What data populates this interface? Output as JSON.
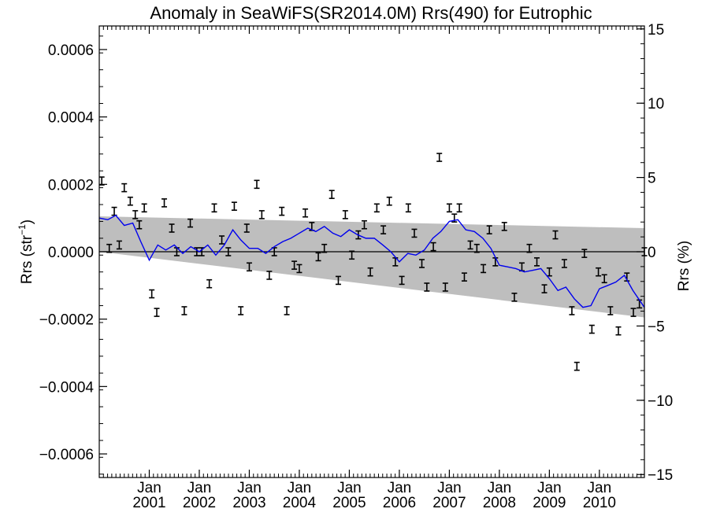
{
  "chart_data": {
    "type": "line",
    "title": "Anomaly in SeaWiFS(SR2014.0M) Rrs(490) for Eutrophic",
    "ylabel_left": {
      "main": "Rrs (str",
      "sup": "−1",
      "close": ")"
    },
    "ylabel_right": "Rrs (%)",
    "ylim": [
      -0.00067,
      0.00067
    ],
    "xlim": [
      2000.0,
      2010.9
    ],
    "y2lim": [
      -15.2,
      15.2
    ],
    "y_ticks": [
      "0.0006",
      "0.0004",
      "0.0002",
      "0.0000",
      "−0.0002",
      "−0.0004",
      "−0.0006"
    ],
    "y2_ticks": [
      "15",
      "10",
      "5",
      "0",
      "−5",
      "−10",
      "−15"
    ],
    "x_ticks": [
      {
        "month": "Jan",
        "year": "2001"
      },
      {
        "month": "Jan",
        "year": "2002"
      },
      {
        "month": "Jan",
        "year": "2003"
      },
      {
        "month": "Jan",
        "year": "2004"
      },
      {
        "month": "Jan",
        "year": "2005"
      },
      {
        "month": "Jan",
        "year": "2006"
      },
      {
        "month": "Jan",
        "year": "2007"
      },
      {
        "month": "Jan",
        "year": "2008"
      },
      {
        "month": "Jan",
        "year": "2009"
      },
      {
        "month": "Jan",
        "year": "2010"
      }
    ],
    "band": {
      "start": [
        2000.0,
        0.000105,
        -0.0
      ],
      "end": [
        2010.9,
        7e-05,
        -0.000195
      ]
    },
    "series": [
      {
        "color": "#0000ee",
        "x": [
          2000.0,
          2000.17,
          2000.33,
          2000.5,
          2000.67,
          2000.83,
          2001.0,
          2001.17,
          2001.33,
          2001.5,
          2001.67,
          2001.83,
          2002.0,
          2002.17,
          2002.33,
          2002.5,
          2002.67,
          2002.83,
          2003.0,
          2003.17,
          2003.33,
          2003.5,
          2003.67,
          2003.83,
          2004.0,
          2004.17,
          2004.33,
          2004.5,
          2004.67,
          2004.83,
          2005.0,
          2005.17,
          2005.33,
          2005.5,
          2005.67,
          2005.83,
          2006.0,
          2006.17,
          2006.33,
          2006.5,
          2006.67,
          2006.83,
          2007.0,
          2007.17,
          2007.33,
          2007.5,
          2007.67,
          2007.83,
          2008.0,
          2008.17,
          2008.33,
          2008.5,
          2008.67,
          2008.83,
          2009.0,
          2009.17,
          2009.33,
          2009.5,
          2009.67,
          2009.83,
          2010.0,
          2010.17,
          2010.33,
          2010.5,
          2010.67,
          2010.9
        ],
        "y": [
          0.0001,
          9.5e-05,
          0.000108,
          7.8e-05,
          8.5e-05,
          3e-05,
          -2.5e-05,
          2e-05,
          5e-06,
          2e-05,
          -5e-06,
          1.5e-05,
          0.0,
          2e-05,
          -1e-05,
          2e-05,
          6.5e-05,
          3.5e-05,
          1e-05,
          1e-05,
          -5e-06,
          1.5e-05,
          3e-05,
          4e-05,
          5.5e-05,
          7e-05,
          6e-05,
          7.5e-05,
          5.5e-05,
          4.5e-05,
          6.5e-05,
          5e-05,
          4e-05,
          4e-05,
          2e-05,
          0.0,
          -3e-05,
          -5e-06,
          -1e-05,
          5e-06,
          4e-05,
          6e-05,
          9e-05,
          9.5e-05,
          6.5e-05,
          6e-05,
          4e-05,
          1e-05,
          -4e-05,
          -4.5e-05,
          -5e-05,
          -6e-05,
          -5.5e-05,
          -5e-05,
          -8e-05,
          -0.000115,
          -0.000105,
          -0.00014,
          -0.000165,
          -0.00016,
          -0.00011,
          -0.0001,
          -9e-05,
          -7e-05,
          -0.000115,
          -0.000165
        ]
      }
    ],
    "points": {
      "x": [
        2000.05,
        2000.2,
        2000.3,
        2000.4,
        2000.5,
        2000.62,
        2000.72,
        2000.8,
        2000.9,
        2001.05,
        2001.15,
        2001.3,
        2001.45,
        2001.55,
        2001.7,
        2001.82,
        2001.95,
        2002.05,
        2002.2,
        2002.3,
        2002.45,
        2002.58,
        2002.7,
        2002.83,
        2002.95,
        2003.0,
        2003.15,
        2003.25,
        2003.4,
        2003.5,
        2003.65,
        2003.75,
        2003.9,
        2004.0,
        2004.12,
        2004.25,
        2004.38,
        2004.5,
        2004.65,
        2004.78,
        2004.92,
        2005.05,
        2005.18,
        2005.3,
        2005.42,
        2005.55,
        2005.68,
        2005.8,
        2005.92,
        2006.05,
        2006.18,
        2006.3,
        2006.45,
        2006.55,
        2006.68,
        2006.8,
        2006.92,
        2007.0,
        2007.1,
        2007.2,
        2007.3,
        2007.42,
        2007.55,
        2007.68,
        2007.8,
        2007.92,
        2008.1,
        2008.3,
        2008.45,
        2008.6,
        2008.75,
        2008.9,
        2009.0,
        2009.12,
        2009.3,
        2009.45,
        2009.55,
        2009.7,
        2009.85,
        2009.98,
        2010.1,
        2010.22,
        2010.38,
        2010.55,
        2010.68,
        2010.8,
        2010.9
      ],
      "y": [
        0.00021,
        1e-05,
        0.00012,
        2e-05,
        0.00019,
        0.00015,
        0.00011,
        8e-05,
        0.00013,
        -0.000125,
        -0.00018,
        0.000145,
        7e-05,
        0.0,
        -0.000175,
        8.5e-05,
        0.0,
        0.0,
        -9.5e-05,
        0.00013,
        3.5e-05,
        0.0,
        0.000135,
        -0.000175,
        7e-05,
        -4.5e-05,
        0.0002,
        0.00011,
        -7e-05,
        0.0,
        0.00012,
        -0.000175,
        -4e-05,
        -5e-05,
        0.000115,
        7.5e-05,
        -1.5e-05,
        1e-05,
        0.00017,
        -8.5e-05,
        0.00011,
        -1e-05,
        5e-05,
        8e-05,
        -6e-05,
        0.00013,
        6.5e-05,
        0.00015,
        -3e-05,
        -8.5e-05,
        0.00013,
        5.5e-05,
        -3.5e-05,
        -0.000105,
        1.5e-05,
        0.00028,
        -0.000105,
        0.00013,
        0.0001,
        0.00013,
        -7.5e-05,
        2e-05,
        1e-05,
        -5e-05,
        6.5e-05,
        -3e-05,
        7.5e-05,
        -0.000135,
        -4.5e-05,
        1e-05,
        -3e-05,
        -0.00011,
        -6e-05,
        5e-05,
        -3.5e-05,
        -0.000175,
        -0.00034,
        -5e-06,
        -0.00023,
        -6e-05,
        -8e-05,
        -0.000175,
        -0.000235,
        -7.5e-05,
        -0.00018,
        -0.000155,
        0.0
      ]
    }
  }
}
